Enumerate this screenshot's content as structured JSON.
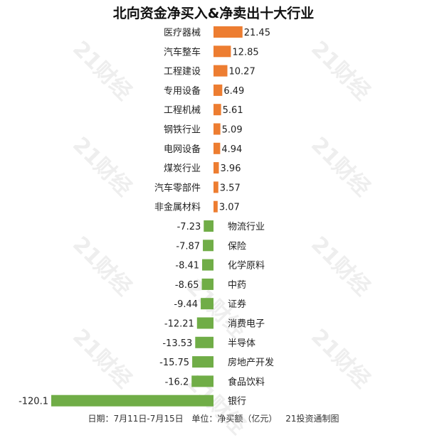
{
  "chart_data": {
    "type": "bar",
    "orientation": "horizontal",
    "title": "北向资金净买入&净卖出十大行业",
    "footer": {
      "date": "日期：7月11日-7月15日",
      "unit": "单位：净买额（亿元）",
      "source": "21投资通制图"
    },
    "categories": [
      "医疗器械",
      "汽车整车",
      "工程建设",
      "专用设备",
      "工程机械",
      "钢铁行业",
      "电网设备",
      "煤炭行业",
      "汽车零部件",
      "非金属材料",
      "物流行业",
      "保险",
      "化学原料",
      "中药",
      "证券",
      "消费电子",
      "半导体",
      "房地产开发",
      "食品饮料",
      "银行"
    ],
    "value_labels": [
      "21.45",
      "12.85",
      "10.27",
      "6.49",
      "5.61",
      "5.09",
      "4.94",
      "3.96",
      "3.57",
      "3.07",
      "-7.23",
      "-7.87",
      "-8.41",
      "-8.65",
      "-9.44",
      "-12.21",
      "-13.53",
      "-15.75",
      "-16.2",
      "-120.1"
    ],
    "values": [
      21.45,
      12.85,
      10.27,
      6.49,
      5.61,
      5.09,
      4.94,
      3.96,
      3.57,
      3.07,
      -7.23,
      -7.87,
      -8.41,
      -8.65,
      -9.44,
      -12.21,
      -13.53,
      -15.75,
      -16.2,
      -120.1
    ],
    "colors": {
      "positive": "#ED7D31",
      "negative": "#70AD47"
    },
    "grid": false,
    "legend": "none"
  },
  "watermark": "21财经"
}
